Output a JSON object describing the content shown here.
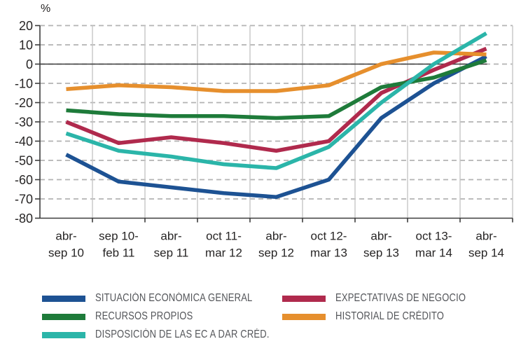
{
  "unit_label": "%",
  "chart_data": {
    "type": "line",
    "title": "",
    "xlabel": "",
    "ylabel": "%",
    "ylim": [
      -80,
      20
    ],
    "yticks": [
      20,
      10,
      0,
      -10,
      -20,
      -30,
      -40,
      -50,
      -60,
      -70,
      -80
    ],
    "grid": "horizontal dashed gray + vertical solid light gray, solid black zero line",
    "legend_position": "bottom, two columns",
    "categories": [
      "abr-sep 10",
      "sep 10-feb 11",
      "abr-sep 11",
      "oct 11-mar 12",
      "abr-sep 12",
      "oct 12-mar 13",
      "abr-sep 13",
      "oct 13-mar 14",
      "abr-sep 14"
    ],
    "categories_lines": [
      [
        "abr-",
        "sep 10"
      ],
      [
        "sep 10-",
        "feb 11"
      ],
      [
        "abr-",
        "sep 11"
      ],
      [
        "oct 11-",
        "mar 12"
      ],
      [
        "abr-",
        "sep 12"
      ],
      [
        "oct 12-",
        "mar 13"
      ],
      [
        "abr-",
        "sep 13"
      ],
      [
        "oct 13-",
        "mar 14"
      ],
      [
        "abr-",
        "sep 14"
      ]
    ],
    "series": [
      {
        "name": "SITUACIÓN ECONÓMICA GENERAL",
        "color": "#1d5293",
        "values": [
          -47,
          -61,
          -64,
          -67,
          -69,
          -60,
          -28,
          -10,
          4
        ]
      },
      {
        "name": "EXPECTATIVAS DE NEGOCIO",
        "color": "#b02a4d",
        "values": [
          -30,
          -41,
          -38,
          -41,
          -45,
          -40,
          -15,
          -3,
          8
        ]
      },
      {
        "name": "RECURSOS PROPIOS",
        "color": "#1e7b3a",
        "values": [
          -24,
          -26,
          -27,
          -27,
          -28,
          -27,
          -12,
          -7,
          2
        ]
      },
      {
        "name": "HISTORIAL DE CRÉDITO",
        "color": "#e68f2d",
        "values": [
          -13,
          -11,
          -12,
          -14,
          -14,
          -11,
          0,
          6,
          5
        ]
      },
      {
        "name": "DISPOSICIÓN DE LAS EC A DAR CRÉD.",
        "color": "#2bb5a9",
        "values": [
          -36,
          -45,
          -48,
          -52,
          -54,
          -43,
          -20,
          0,
          16
        ]
      }
    ]
  },
  "legend": {
    "column1": [
      "SITUACIÓN ECONÓMICA GENERAL",
      "RECURSOS PROPIOS",
      "DISPOSICIÓN DE LAS EC A DAR CRÉD."
    ],
    "column2": [
      "EXPECTATIVAS DE NEGOCIO",
      "HISTORIAL DE CRÉDITO"
    ]
  },
  "colors": {
    "axis": "#3c3c3c",
    "grid_dashed": "#b3b3b3",
    "grid_vertical": "#c6c6c6",
    "tick_text": "#272525",
    "legend_text": "#54565a"
  }
}
